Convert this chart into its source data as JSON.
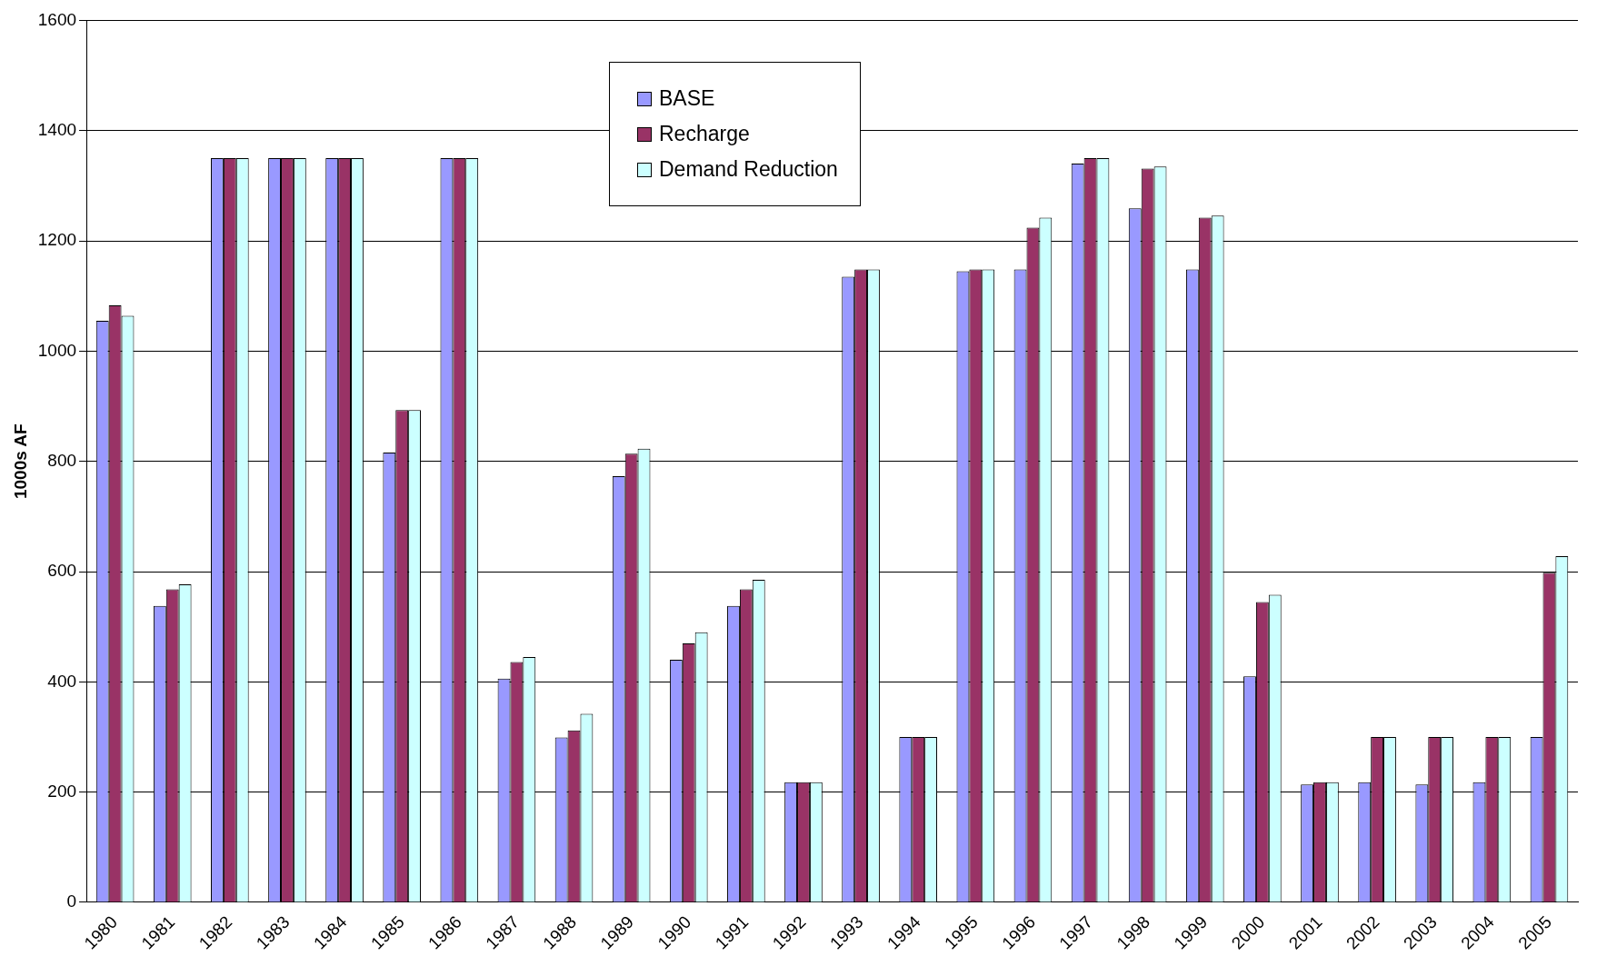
{
  "chart_data": {
    "type": "bar",
    "ylabel": "1000s AF",
    "categories": [
      "1980",
      "1981",
      "1982",
      "1983",
      "1984",
      "1985",
      "1986",
      "1987",
      "1988",
      "1989",
      "1990",
      "1991",
      "1992",
      "1993",
      "1994",
      "1995",
      "1996",
      "1997",
      "1998",
      "1999",
      "2000",
      "2001",
      "2002",
      "2003",
      "2004",
      "2005"
    ],
    "series": [
      {
        "name": "BASE",
        "color": "#9999ff",
        "values": [
          1055,
          538,
          1350,
          1350,
          1350,
          816,
          1350,
          406,
          299,
          773,
          440,
          538,
          218,
          1135,
          300,
          1145,
          1148,
          1340,
          1259,
          1148,
          410,
          214,
          218,
          214,
          218,
          300
        ]
      },
      {
        "name": "Recharge",
        "color": "#993366",
        "values": [
          1083,
          568,
          1350,
          1350,
          1350,
          893,
          1350,
          436,
          312,
          814,
          470,
          568,
          218,
          1148,
          300,
          1148,
          1224,
          1350,
          1331,
          1242,
          545,
          218,
          300,
          300,
          300,
          598
        ]
      },
      {
        "name": "Demand Reduction",
        "color": "#ccffff",
        "values": [
          1064,
          577,
          1350,
          1350,
          1350,
          893,
          1350,
          445,
          342,
          823,
          490,
          585,
          218,
          1148,
          300,
          1148,
          1242,
          1350,
          1335,
          1246,
          558,
          218,
          300,
          300,
          300,
          628
        ]
      }
    ],
    "ylim": [
      0,
      1600
    ],
    "yticks": [
      0,
      200,
      400,
      600,
      800,
      1000,
      1200,
      1400,
      1600
    ],
    "grid": "y",
    "legend": "top"
  }
}
